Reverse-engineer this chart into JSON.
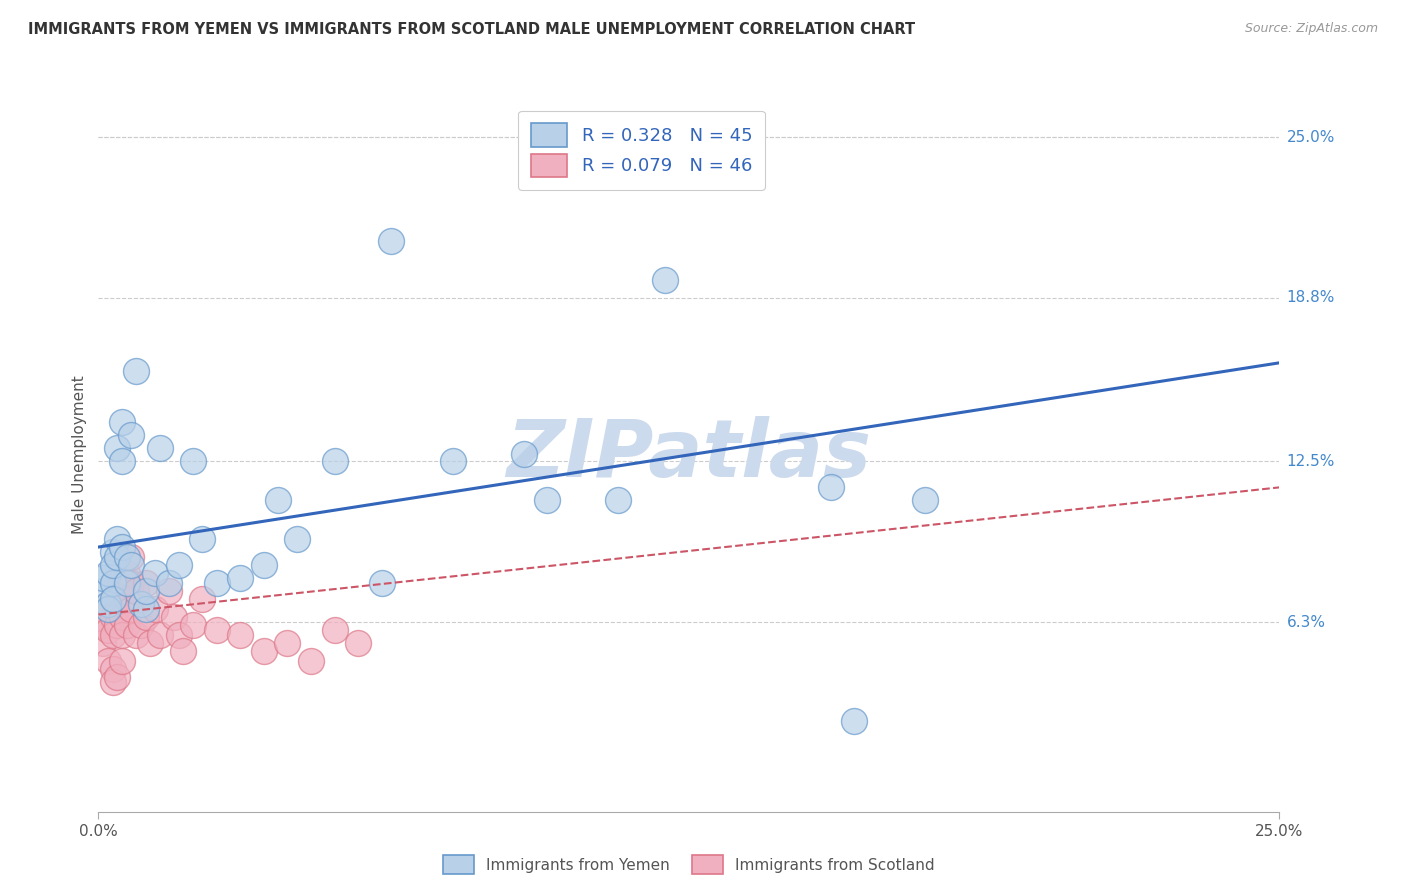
{
  "title": "IMMIGRANTS FROM YEMEN VS IMMIGRANTS FROM SCOTLAND MALE UNEMPLOYMENT CORRELATION CHART",
  "source": "Source: ZipAtlas.com",
  "ylabel": "Male Unemployment",
  "y_tick_values": [
    0.063,
    0.125,
    0.188,
    0.25
  ],
  "y_tick_labels": [
    "6.3%",
    "12.5%",
    "18.8%",
    "25.0%"
  ],
  "xlim": [
    0.0,
    0.25
  ],
  "ylim": [
    -0.01,
    0.265
  ],
  "legend_label1": "R = 0.328   N = 45",
  "legend_label2": "R = 0.079   N = 46",
  "legend_footer1": "Immigrants from Yemen",
  "legend_footer2": "Immigrants from Scotland",
  "color_yemen_fill": "#b8d0e8",
  "color_yemen_edge": "#6699cc",
  "color_scotland_fill": "#f0b0c0",
  "color_scotland_edge": "#dd7788",
  "color_line_yemen": "#3366bb",
  "color_line_scotland": "#cc5566",
  "watermark_color": "#ccdaee",
  "yemen_line_y0": 0.092,
  "yemen_line_y1": 0.163,
  "scotland_line_y0": 0.066,
  "scotland_line_y1": 0.115,
  "yemen_x": [
    0.001,
    0.001,
    0.002,
    0.002,
    0.002,
    0.003,
    0.003,
    0.003,
    0.003,
    0.004,
    0.004,
    0.004,
    0.005,
    0.005,
    0.005,
    0.006,
    0.006,
    0.007,
    0.007,
    0.008,
    0.009,
    0.01,
    0.01,
    0.012,
    0.013,
    0.015,
    0.017,
    0.02,
    0.022,
    0.025,
    0.03,
    0.035,
    0.038,
    0.042,
    0.05,
    0.06,
    0.062,
    0.075,
    0.09,
    0.095,
    0.11,
    0.12,
    0.155,
    0.16,
    0.175
  ],
  "yemen_y": [
    0.075,
    0.08,
    0.07,
    0.082,
    0.068,
    0.078,
    0.072,
    0.09,
    0.085,
    0.095,
    0.088,
    0.13,
    0.092,
    0.125,
    0.14,
    0.088,
    0.078,
    0.135,
    0.085,
    0.16,
    0.07,
    0.068,
    0.075,
    0.082,
    0.13,
    0.078,
    0.085,
    0.125,
    0.095,
    0.078,
    0.08,
    0.085,
    0.11,
    0.095,
    0.125,
    0.078,
    0.21,
    0.125,
    0.128,
    0.11,
    0.11,
    0.195,
    0.115,
    0.025,
    0.11
  ],
  "scotland_x": [
    0.001,
    0.001,
    0.001,
    0.002,
    0.002,
    0.002,
    0.003,
    0.003,
    0.003,
    0.003,
    0.003,
    0.004,
    0.004,
    0.004,
    0.004,
    0.005,
    0.005,
    0.005,
    0.005,
    0.006,
    0.006,
    0.006,
    0.007,
    0.007,
    0.007,
    0.008,
    0.008,
    0.009,
    0.01,
    0.01,
    0.011,
    0.012,
    0.013,
    0.015,
    0.016,
    0.017,
    0.018,
    0.02,
    0.022,
    0.025,
    0.03,
    0.035,
    0.04,
    0.045,
    0.05,
    0.055
  ],
  "scotland_y": [
    0.065,
    0.062,
    0.055,
    0.07,
    0.06,
    0.048,
    0.072,
    0.065,
    0.058,
    0.045,
    0.04,
    0.078,
    0.068,
    0.062,
    0.042,
    0.075,
    0.065,
    0.058,
    0.048,
    0.082,
    0.072,
    0.062,
    0.088,
    0.078,
    0.068,
    0.075,
    0.058,
    0.062,
    0.078,
    0.065,
    0.055,
    0.068,
    0.058,
    0.075,
    0.065,
    0.058,
    0.052,
    0.062,
    0.072,
    0.06,
    0.058,
    0.052,
    0.055,
    0.048,
    0.06,
    0.055
  ]
}
